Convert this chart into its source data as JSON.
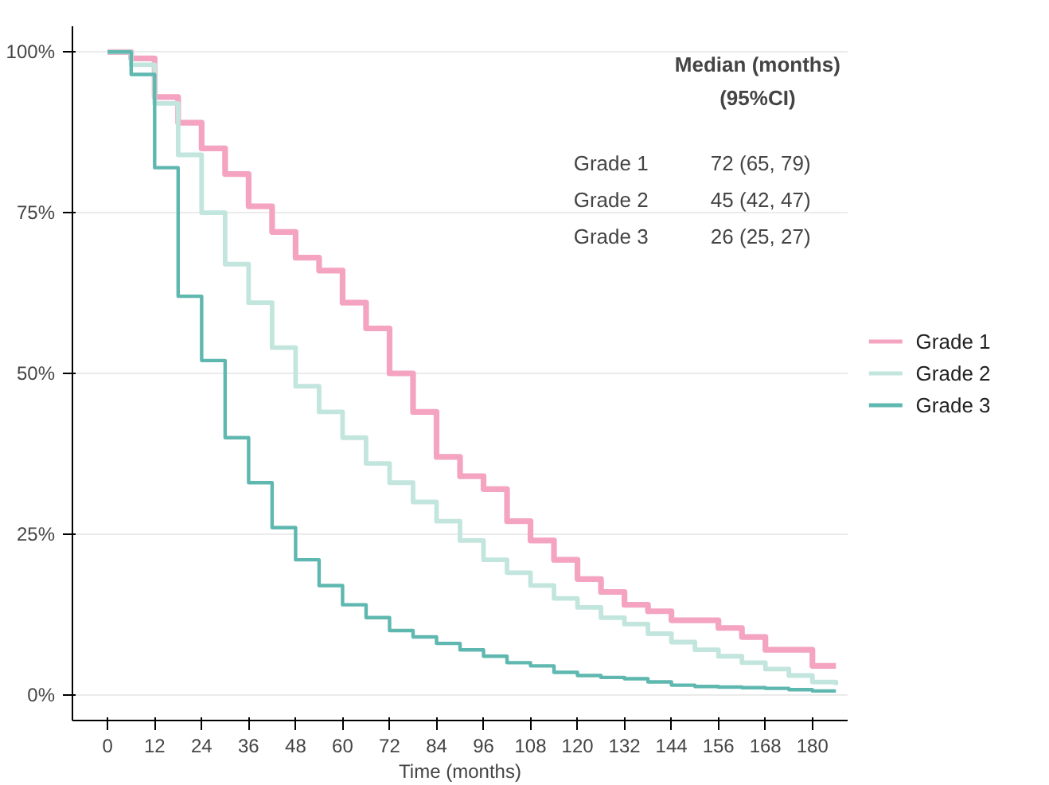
{
  "chart_data": {
    "type": "step",
    "xlabel": "Time (months)",
    "x": [
      0,
      6,
      12,
      18,
      24,
      30,
      36,
      42,
      48,
      54,
      60,
      66,
      72,
      78,
      84,
      90,
      96,
      102,
      108,
      114,
      120,
      126,
      132,
      138,
      144,
      150,
      156,
      162,
      168,
      174,
      180,
      186
    ],
    "series": [
      {
        "name": "Grade 1",
        "color": "#f4a3c0",
        "values": [
          100,
          99,
          93,
          89,
          85,
          81,
          76,
          72,
          68,
          66,
          61,
          57,
          50,
          44,
          37,
          34,
          32,
          27,
          24,
          21,
          18,
          16,
          14,
          13,
          11.6,
          11.6,
          10.4,
          9,
          7,
          7,
          4.5,
          4.5
        ]
      },
      {
        "name": "Grade 2",
        "color": "#c2e6dd",
        "values": [
          100,
          98,
          92,
          84,
          75,
          67,
          61,
          54,
          48,
          44,
          40,
          36,
          33,
          30,
          27,
          24,
          21,
          19,
          17,
          15,
          13.6,
          12,
          11,
          9.5,
          8.2,
          7,
          6,
          5,
          4,
          3,
          2,
          1.5
        ]
      },
      {
        "name": "Grade 3",
        "color": "#5fb8b0",
        "values": [
          100,
          96.5,
          82,
          62,
          52,
          40,
          33,
          26,
          21,
          17,
          14,
          12,
          10,
          9,
          8,
          7,
          6,
          5,
          4.5,
          3.5,
          3,
          2.7,
          2.5,
          2,
          1.5,
          1.3,
          1.2,
          1.1,
          1,
          0.8,
          0.6,
          0.6
        ]
      }
    ],
    "xlim": [
      -9,
      189
    ],
    "ylim": [
      -4,
      104
    ],
    "xticks": [
      0,
      12,
      24,
      36,
      48,
      60,
      72,
      84,
      96,
      108,
      120,
      132,
      144,
      156,
      168,
      180
    ],
    "yticks": [
      {
        "value": 0,
        "label": "0%"
      },
      {
        "value": 25,
        "label": "25%"
      },
      {
        "value": 50,
        "label": "50%"
      },
      {
        "value": 75,
        "label": "75%"
      },
      {
        "value": 100,
        "label": "100%"
      }
    ],
    "grid": "y",
    "legend": "right",
    "annotations": [
      "Median (months)",
      "(95%CI)",
      "Grade 1",
      "72 (65, 79)",
      "Grade 2",
      "45 (42, 47)",
      "Grade 3",
      "26 (25, 27)"
    ]
  }
}
